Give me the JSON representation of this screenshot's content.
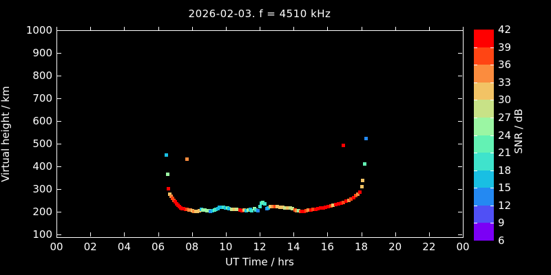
{
  "title": "2026-02-03. f = 4510 kHz",
  "chart_data": {
    "type": "scatter",
    "title": "2026-02-03. f = 4510 kHz",
    "xlabel": "UT Time / hrs",
    "ylabel": "Virtual height / km",
    "xlim": [
      0,
      24
    ],
    "ylim": [
      88,
      1000
    ],
    "x_tick_values": [
      0,
      2,
      4,
      6,
      8,
      10,
      12,
      14,
      16,
      18,
      20,
      22,
      24
    ],
    "x_tick_labels": [
      "00",
      "02",
      "04",
      "06",
      "08",
      "10",
      "12",
      "14",
      "16",
      "18",
      "20",
      "22",
      "00"
    ],
    "y_tick_values": [
      100,
      200,
      300,
      400,
      500,
      600,
      700,
      800,
      900,
      1000
    ],
    "grid": false,
    "background": "#000000",
    "axis_color": "#ffffff",
    "marker": "square",
    "marker_size_px": 5,
    "colorbar": {
      "label": "SNR / dB",
      "min": 6,
      "max": 42,
      "step": 3,
      "tick_labels_top_to_bottom": [
        42,
        39,
        36,
        33,
        30,
        27,
        24,
        21,
        18,
        15,
        12,
        9,
        6
      ],
      "colors_low_to_high": [
        "#7b00f5",
        "#5050f5",
        "#2489f2",
        "#19bfe3",
        "#3fe3cc",
        "#63f2b4",
        "#9bf6a3",
        "#c8e287",
        "#f2c365",
        "#fb8c3e",
        "#ff4514",
        "#ff0000"
      ]
    },
    "points_format": [
      "ut_hours",
      "virtual_height_km",
      "snr_db"
    ],
    "points": [
      [
        6.47,
        451,
        16
      ],
      [
        6.55,
        364,
        25
      ],
      [
        7.69,
        433,
        34
      ],
      [
        16.95,
        494,
        40
      ],
      [
        18.3,
        524,
        13
      ],
      [
        18.2,
        410,
        22
      ],
      [
        18.1,
        339,
        31
      ],
      [
        18.05,
        312,
        31
      ],
      [
        6.62,
        303,
        40
      ],
      [
        6.7,
        277,
        31
      ],
      [
        6.78,
        268,
        34
      ],
      [
        6.86,
        259,
        37
      ],
      [
        6.94,
        251,
        37
      ],
      [
        7.02,
        243,
        40
      ],
      [
        7.1,
        236,
        40
      ],
      [
        7.18,
        229,
        40
      ],
      [
        7.26,
        223,
        40
      ],
      [
        7.34,
        218,
        40
      ],
      [
        7.42,
        215,
        40
      ],
      [
        7.52,
        213,
        40
      ],
      [
        7.62,
        212,
        40
      ],
      [
        7.72,
        211,
        37
      ],
      [
        7.82,
        209,
        34
      ],
      [
        7.92,
        207,
        34
      ],
      [
        8.02,
        205,
        31
      ],
      [
        8.12,
        203,
        34
      ],
      [
        8.22,
        202,
        31
      ],
      [
        8.32,
        203,
        31
      ],
      [
        8.45,
        205,
        31
      ],
      [
        8.55,
        210,
        16
      ],
      [
        8.65,
        209,
        25
      ],
      [
        8.78,
        207,
        26
      ],
      [
        8.9,
        205,
        26
      ],
      [
        9.0,
        204,
        25
      ],
      [
        9.1,
        203,
        13
      ],
      [
        9.2,
        205,
        16
      ],
      [
        9.32,
        207,
        22
      ],
      [
        9.42,
        211,
        19
      ],
      [
        9.52,
        215,
        16
      ],
      [
        9.62,
        219,
        16
      ],
      [
        9.75,
        221,
        16
      ],
      [
        9.88,
        220,
        19
      ],
      [
        10.0,
        218,
        16
      ],
      [
        10.1,
        216,
        22
      ],
      [
        10.2,
        214,
        16
      ],
      [
        10.35,
        212,
        28
      ],
      [
        10.5,
        211,
        31
      ],
      [
        10.65,
        211,
        28
      ],
      [
        10.85,
        209,
        40
      ],
      [
        10.98,
        206,
        40
      ],
      [
        11.1,
        209,
        31
      ],
      [
        11.2,
        206,
        16
      ],
      [
        11.32,
        208,
        25
      ],
      [
        11.45,
        211,
        16
      ],
      [
        11.55,
        206,
        19
      ],
      [
        11.68,
        214,
        25
      ],
      [
        11.78,
        208,
        19
      ],
      [
        11.9,
        205,
        13
      ],
      [
        12.0,
        224,
        19
      ],
      [
        12.1,
        237,
        19
      ],
      [
        12.2,
        240,
        22
      ],
      [
        12.3,
        235,
        19
      ],
      [
        12.42,
        214,
        13
      ],
      [
        12.52,
        217,
        16
      ],
      [
        12.65,
        223,
        31
      ],
      [
        12.78,
        224,
        34
      ],
      [
        12.9,
        223,
        37
      ],
      [
        13.05,
        222,
        31
      ],
      [
        13.2,
        221,
        31
      ],
      [
        13.35,
        219,
        31
      ],
      [
        13.5,
        218,
        28
      ],
      [
        13.65,
        217,
        31
      ],
      [
        13.8,
        216,
        28
      ],
      [
        13.95,
        215,
        28
      ],
      [
        14.08,
        208,
        37
      ],
      [
        14.18,
        205,
        34
      ],
      [
        14.28,
        204,
        25
      ],
      [
        14.4,
        203,
        37
      ],
      [
        14.5,
        202,
        40
      ],
      [
        14.62,
        203,
        40
      ],
      [
        14.75,
        205,
        37
      ],
      [
        14.88,
        207,
        34
      ],
      [
        15.02,
        208,
        40
      ],
      [
        15.15,
        210,
        37
      ],
      [
        15.3,
        212,
        40
      ],
      [
        15.45,
        214,
        40
      ],
      [
        15.6,
        216,
        40
      ],
      [
        15.75,
        218,
        40
      ],
      [
        15.9,
        220,
        40
      ],
      [
        16.05,
        223,
        40
      ],
      [
        16.2,
        226,
        37
      ],
      [
        16.35,
        228,
        31
      ],
      [
        16.5,
        231,
        40
      ],
      [
        16.65,
        234,
        40
      ],
      [
        16.8,
        238,
        40
      ],
      [
        16.95,
        242,
        37
      ],
      [
        17.1,
        246,
        40
      ],
      [
        17.25,
        250,
        34
      ],
      [
        17.4,
        256,
        37
      ],
      [
        17.55,
        263,
        40
      ],
      [
        17.68,
        270,
        37
      ],
      [
        17.8,
        277,
        34
      ],
      [
        17.92,
        286,
        40
      ]
    ]
  }
}
